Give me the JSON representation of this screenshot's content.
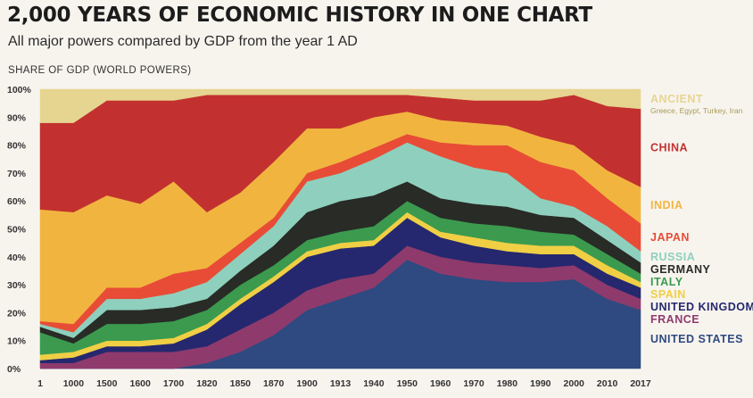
{
  "title": "2,000 YEARS OF ECONOMIC HISTORY IN ONE CHART",
  "subtitle": "All major powers compared by GDP from the year 1 AD",
  "ylabel": "SHARE OF GDP (WORLD POWERS)",
  "chart_data": {
    "type": "area",
    "stacked": true,
    "ylim": [
      0,
      100
    ],
    "y_ticks": [
      "0%",
      "10%",
      "20%",
      "30%",
      "40%",
      "50%",
      "60%",
      "70%",
      "80%",
      "90%",
      "100%"
    ],
    "x": [
      "1",
      "1000",
      "1500",
      "1600",
      "1700",
      "1820",
      "1850",
      "1870",
      "1900",
      "1913",
      "1940",
      "1950",
      "1960",
      "1970",
      "1980",
      "1990",
      "2000",
      "2010",
      "2017"
    ],
    "legend_placement": "right",
    "series": [
      {
        "name": "UNITED STATES",
        "color": "#2f4a80",
        "values": [
          0,
          0,
          0,
          0,
          0,
          2,
          6,
          12,
          21,
          25,
          29,
          39,
          34,
          32,
          31,
          31,
          32,
          25,
          21
        ]
      },
      {
        "name": "FRANCE",
        "color": "#8f3a6c",
        "values": [
          2,
          2,
          6,
          6,
          6,
          6,
          8,
          8,
          7,
          7,
          5,
          5,
          6,
          6,
          6,
          5,
          5,
          5,
          4
        ]
      },
      {
        "name": "UNITED KINGDOM",
        "color": "#25286e",
        "values": [
          1,
          2,
          2,
          2,
          3,
          6,
          9,
          11,
          12,
          11,
          10,
          10,
          7,
          6,
          5,
          5,
          4,
          4,
          4
        ]
      },
      {
        "name": "SPAIN",
        "color": "#f0cf45",
        "values": [
          2,
          2,
          2,
          2,
          2,
          2,
          2,
          2,
          2,
          2,
          2,
          2,
          2,
          3,
          3,
          3,
          3,
          3,
          2
        ]
      },
      {
        "name": "ITALY",
        "color": "#3b9a4e",
        "values": [
          8,
          3,
          6,
          6,
          6,
          5,
          5,
          4,
          4,
          4,
          5,
          4,
          5,
          5,
          6,
          5,
          4,
          4,
          3
        ]
      },
      {
        "name": "GERMANY",
        "color": "#282b26",
        "values": [
          2,
          2,
          5,
          5,
          5,
          4,
          5,
          7,
          10,
          11,
          11,
          7,
          7,
          7,
          7,
          6,
          6,
          5,
          4
        ]
      },
      {
        "name": "RUSSIA",
        "color": "#8ed0bd",
        "values": [
          1,
          2,
          4,
          4,
          5,
          6,
          6,
          7,
          11,
          10,
          13,
          14,
          15,
          13,
          12,
          6,
          4,
          5,
          4
        ]
      },
      {
        "name": "JAPAN",
        "color": "#e84c36",
        "values": [
          1,
          3,
          4,
          4,
          7,
          5,
          4,
          3,
          3,
          4,
          4,
          3,
          5,
          8,
          10,
          13,
          13,
          10,
          10
        ]
      },
      {
        "name": "INDIA",
        "color": "#f1b53f",
        "values": [
          40,
          40,
          33,
          30,
          33,
          20,
          18,
          20,
          16,
          12,
          11,
          8,
          8,
          8,
          7,
          9,
          9,
          10,
          13
        ]
      },
      {
        "name": "CHINA",
        "color": "#c2312f",
        "values": [
          31,
          32,
          34,
          37,
          29,
          42,
          35,
          24,
          12,
          12,
          8,
          6,
          8,
          8,
          9,
          13,
          18,
          23,
          28
        ]
      },
      {
        "name": "ANCIENT",
        "subtitle": "Greece, Egypt, Turkey, Iran",
        "color": "#e6d590",
        "values": [
          12,
          12,
          4,
          4,
          4,
          2,
          2,
          2,
          2,
          2,
          2,
          2,
          3,
          4,
          4,
          4,
          2,
          6,
          7
        ]
      }
    ]
  }
}
